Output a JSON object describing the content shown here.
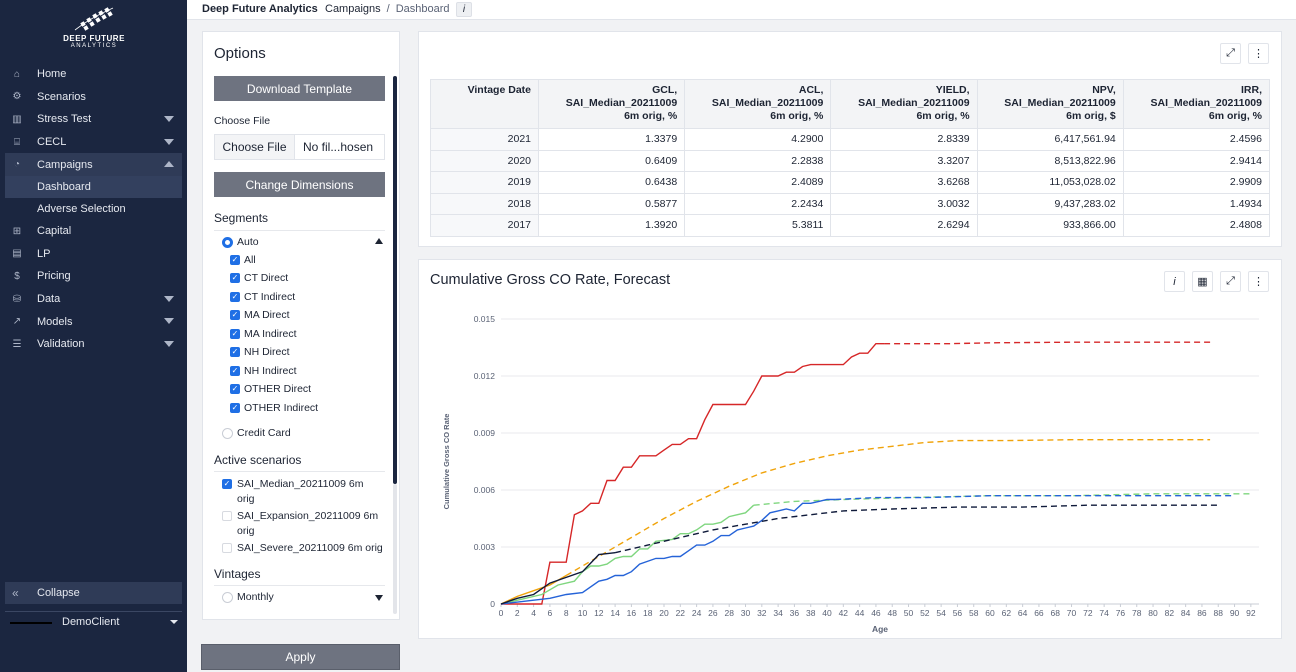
{
  "brand": {
    "logo_line1": "DEEP FUTURE",
    "logo_line2": "ANALYTICS"
  },
  "sidebar": {
    "items": [
      {
        "label": "Home",
        "icon": "home-icon"
      },
      {
        "label": "Scenarios",
        "icon": "gear-icon"
      },
      {
        "label": "Stress Test",
        "icon": "bank-icon",
        "expandable": true
      },
      {
        "label": "CECL",
        "icon": "institution-icon",
        "expandable": true
      },
      {
        "label": "Campaigns",
        "icon": "dashboard-gauge-icon",
        "expandable": true,
        "expanded": true,
        "active": true
      },
      {
        "label": "Capital",
        "icon": "structure-icon"
      },
      {
        "label": "LP",
        "icon": "document-icon"
      },
      {
        "label": "Pricing",
        "icon": "dollar-icon"
      },
      {
        "label": "Data",
        "icon": "database-icon",
        "expandable": true
      },
      {
        "label": "Models",
        "icon": "line-chart-icon",
        "expandable": true
      },
      {
        "label": "Validation",
        "icon": "list-icon",
        "expandable": true
      }
    ],
    "campaigns_sub": [
      {
        "label": "Dashboard",
        "active": true
      },
      {
        "label": "Adverse Selection"
      }
    ],
    "collapse_label": "Collapse",
    "client_label": "DemoClient"
  },
  "topbar": {
    "app_name": "Deep Future Analytics",
    "crumb_parent": "Campaigns",
    "crumb_sep": "/",
    "crumb_current": "Dashboard",
    "info": "i"
  },
  "options": {
    "title": "Options",
    "download_template": "Download Template",
    "choose_file_label": "Choose File",
    "choose_file_button": "Choose File",
    "file_name": "No fil...hosen",
    "change_dimensions": "Change Dimensions",
    "segments_title": "Segments",
    "segment_mode": "Auto",
    "segments": [
      "All",
      "CT Direct",
      "CT Indirect",
      "MA Direct",
      "MA Indirect",
      "NH Direct",
      "NH Indirect",
      "OTHER Direct",
      "OTHER Indirect"
    ],
    "credit_card": "Credit Card",
    "active_scenarios_title": "Active scenarios",
    "scenarios": [
      {
        "line1": "SAI_Median_20211009 6m",
        "line2": "orig",
        "checked": true
      },
      {
        "line1": "SAI_Expansion_20211009 6m",
        "line2": "orig",
        "checked": false
      },
      {
        "line1": "SAI_Severe_20211009 6m orig",
        "line2": "",
        "checked": false
      }
    ],
    "vintages_title": "Vintages",
    "vintage_mode": "Monthly",
    "apply": "Apply"
  },
  "table": {
    "headers": [
      {
        "l1": "Vintage Date",
        "l2": "",
        "l3": ""
      },
      {
        "l1": "GCL,",
        "l2": "SAI_Median_20211009",
        "l3": "6m orig, %"
      },
      {
        "l1": "ACL,",
        "l2": "SAI_Median_20211009",
        "l3": "6m orig, %"
      },
      {
        "l1": "YIELD,",
        "l2": "SAI_Median_20211009",
        "l3": "6m orig, %"
      },
      {
        "l1": "NPV,",
        "l2": "SAI_Median_20211009",
        "l3": "6m orig, $"
      },
      {
        "l1": "IRR,",
        "l2": "SAI_Median_20211009",
        "l3": "6m orig, %"
      }
    ],
    "rows": [
      [
        "2021",
        "1.3379",
        "4.2900",
        "2.8339",
        "6,417,561.94",
        "2.4596"
      ],
      [
        "2020",
        "0.6409",
        "2.2838",
        "3.3207",
        "8,513,822.96",
        "2.9414"
      ],
      [
        "2019",
        "0.6438",
        "2.4089",
        "3.6268",
        "11,053,028.02",
        "2.9909"
      ],
      [
        "2018",
        "0.5877",
        "2.2434",
        "3.0032",
        "9,437,283.02",
        "1.4934"
      ],
      [
        "2017",
        "1.3920",
        "5.3811",
        "2.6294",
        "933,866.00",
        "2.4808"
      ]
    ]
  },
  "chart_card": {
    "title": "Cumulative Gross CO Rate, Forecast",
    "info": "i"
  },
  "chart_data": {
    "type": "line",
    "title": "Cumulative Gross CO Rate, Forecast",
    "xlabel": "Age",
    "ylabel": "Cumulative Gross CO Rate",
    "xlim": [
      0,
      93
    ],
    "ylim": [
      0,
      0.015
    ],
    "xticks": [
      0,
      2,
      4,
      6,
      8,
      10,
      12,
      14,
      16,
      18,
      20,
      22,
      24,
      26,
      28,
      30,
      32,
      34,
      36,
      38,
      40,
      42,
      44,
      46,
      48,
      50,
      52,
      54,
      56,
      58,
      60,
      62,
      64,
      66,
      68,
      70,
      72,
      74,
      76,
      78,
      80,
      82,
      84,
      86,
      88,
      90,
      92
    ],
    "yticks": [
      0,
      0.003,
      0.006,
      0.009,
      0.012,
      0.015
    ],
    "ytick_labels": [
      "0",
      "0.003",
      "0.006",
      "0.009",
      "0.012",
      "0.015"
    ],
    "grid": true,
    "series": [
      {
        "color": "#d62728",
        "actual": [
          [
            0,
            0
          ],
          [
            5,
            0
          ],
          [
            6,
            0.0022
          ],
          [
            8,
            0.0022
          ],
          [
            9,
            0.0047
          ],
          [
            10,
            0.0049
          ],
          [
            11,
            0.0053
          ],
          [
            12,
            0.0053
          ],
          [
            13,
            0.0065
          ],
          [
            14,
            0.0065
          ],
          [
            15,
            0.0072
          ],
          [
            16,
            0.0072
          ],
          [
            17,
            0.0078
          ],
          [
            19,
            0.0078
          ],
          [
            20,
            0.0081
          ],
          [
            21,
            0.0084
          ],
          [
            22,
            0.0084
          ],
          [
            23,
            0.0087
          ],
          [
            24,
            0.0087
          ],
          [
            25,
            0.0097
          ],
          [
            26,
            0.0105
          ],
          [
            30,
            0.0105
          ],
          [
            31,
            0.0112
          ],
          [
            32,
            0.012
          ],
          [
            34,
            0.012
          ],
          [
            35,
            0.0122
          ],
          [
            36,
            0.0122
          ],
          [
            37,
            0.0125
          ],
          [
            38,
            0.0126
          ],
          [
            42,
            0.0126
          ],
          [
            43,
            0.013
          ],
          [
            44,
            0.0132
          ],
          [
            45,
            0.0132
          ],
          [
            46,
            0.0137
          ],
          [
            47,
            0.0137
          ]
        ],
        "forecast": [
          [
            47,
            0.0137
          ],
          [
            55,
            0.0137
          ],
          [
            60,
            0.01375
          ],
          [
            70,
            0.01378
          ],
          [
            80,
            0.01378
          ],
          [
            87,
            0.01378
          ]
        ]
      },
      {
        "color": "#f0a30a",
        "actual": [
          [
            0,
            0
          ],
          [
            2,
            0.0004
          ],
          [
            4,
            0.0007
          ],
          [
            6,
            0.001
          ],
          [
            8,
            0.0015
          ]
        ],
        "forecast": [
          [
            8,
            0.0015
          ],
          [
            12,
            0.0025
          ],
          [
            16,
            0.0035
          ],
          [
            20,
            0.0045
          ],
          [
            24,
            0.0054
          ],
          [
            28,
            0.0062
          ],
          [
            32,
            0.0069
          ],
          [
            36,
            0.0074
          ],
          [
            40,
            0.0078
          ],
          [
            44,
            0.0081
          ],
          [
            48,
            0.0083
          ],
          [
            52,
            0.0085
          ],
          [
            56,
            0.0086
          ],
          [
            62,
            0.0086
          ],
          [
            70,
            0.00865
          ],
          [
            80,
            0.00865
          ],
          [
            87,
            0.00865
          ]
        ]
      },
      {
        "color": "#7fd67f",
        "actual": [
          [
            0,
            0
          ],
          [
            3,
            0.0003
          ],
          [
            5,
            0.0005
          ],
          [
            7,
            0.001
          ],
          [
            9,
            0.0012
          ],
          [
            10,
            0.0017
          ],
          [
            11,
            0.002
          ],
          [
            12,
            0.002
          ],
          [
            13,
            0.0021
          ],
          [
            14,
            0.0024
          ],
          [
            15,
            0.0025
          ],
          [
            16,
            0.0025
          ],
          [
            17,
            0.0029
          ],
          [
            18,
            0.0029
          ],
          [
            19,
            0.0033
          ],
          [
            21,
            0.0034
          ],
          [
            22,
            0.0037
          ],
          [
            23,
            0.0037
          ],
          [
            24,
            0.0039
          ],
          [
            25,
            0.0042
          ],
          [
            26,
            0.0042
          ],
          [
            27,
            0.0043
          ],
          [
            28,
            0.0046
          ],
          [
            29,
            0.0047
          ],
          [
            30,
            0.0048
          ],
          [
            31,
            0.0052
          ]
        ],
        "forecast": [
          [
            31,
            0.0052
          ],
          [
            36,
            0.0054
          ],
          [
            42,
            0.0055
          ],
          [
            50,
            0.0056
          ],
          [
            60,
            0.0057
          ],
          [
            70,
            0.0057
          ],
          [
            80,
            0.0058
          ],
          [
            92,
            0.0058
          ]
        ]
      },
      {
        "color": "#2563d8",
        "actual": [
          [
            0,
            0
          ],
          [
            4,
            0.0002
          ],
          [
            6,
            0.0003
          ],
          [
            8,
            0.0005
          ],
          [
            10,
            0.0006
          ],
          [
            12,
            0.0012
          ],
          [
            13,
            0.0013
          ],
          [
            14,
            0.0015
          ],
          [
            15,
            0.0015
          ],
          [
            16,
            0.0017
          ],
          [
            17,
            0.0021
          ],
          [
            19,
            0.0024
          ],
          [
            20,
            0.0024
          ],
          [
            21,
            0.0025
          ],
          [
            22,
            0.0025
          ],
          [
            23,
            0.0028
          ],
          [
            24,
            0.0031
          ],
          [
            25,
            0.0031
          ],
          [
            26,
            0.0033
          ],
          [
            27,
            0.0036
          ],
          [
            28,
            0.0036
          ],
          [
            29,
            0.0039
          ],
          [
            30,
            0.004
          ],
          [
            31,
            0.0041
          ],
          [
            32,
            0.0044
          ],
          [
            33,
            0.0048
          ],
          [
            34,
            0.0049
          ],
          [
            35,
            0.005
          ],
          [
            36,
            0.0049
          ],
          [
            37,
            0.0053
          ],
          [
            38,
            0.0053
          ],
          [
            39,
            0.0054
          ],
          [
            40,
            0.0055
          ],
          [
            41,
            0.0055
          ]
        ],
        "forecast": [
          [
            41,
            0.0055
          ],
          [
            46,
            0.0056
          ],
          [
            52,
            0.0056
          ],
          [
            60,
            0.0057
          ],
          [
            70,
            0.0057
          ],
          [
            80,
            0.0057
          ],
          [
            90,
            0.0057
          ]
        ]
      },
      {
        "color": "#0f1a3a",
        "actual": [
          [
            0,
            0
          ],
          [
            2,
            0.0003
          ],
          [
            4,
            0.0005
          ],
          [
            6,
            0.0011
          ],
          [
            8,
            0.0014
          ],
          [
            10,
            0.0017
          ],
          [
            12,
            0.0026
          ],
          [
            14,
            0.0027
          ]
        ],
        "forecast": [
          [
            14,
            0.0027
          ],
          [
            18,
            0.0031
          ],
          [
            22,
            0.0035
          ],
          [
            26,
            0.0039
          ],
          [
            30,
            0.0042
          ],
          [
            34,
            0.0045
          ],
          [
            38,
            0.0047
          ],
          [
            42,
            0.0049
          ],
          [
            48,
            0.005
          ],
          [
            56,
            0.0051
          ],
          [
            64,
            0.0051
          ],
          [
            72,
            0.0052
          ],
          [
            80,
            0.0052
          ],
          [
            88,
            0.0052
          ]
        ]
      }
    ]
  }
}
